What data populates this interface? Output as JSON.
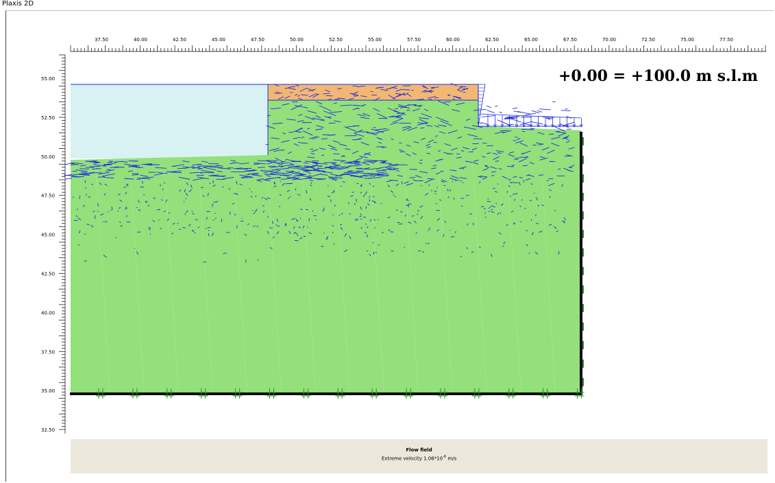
{
  "window": {
    "title": "Plaxis 2D"
  },
  "plot": {
    "x_labels": [
      "37.50",
      "40.00",
      "42.50",
      "45.00",
      "47.50",
      "50.00",
      "52.50",
      "55.00",
      "57.50",
      "60.00",
      "62.50",
      "65.00",
      "67.50",
      "70.00",
      "72.50",
      "75.00",
      "77.50"
    ],
    "y_labels": [
      "55.00",
      "52.50",
      "50.00",
      "47.50",
      "45.00",
      "42.50",
      "40.00",
      "37.50",
      "35.00",
      "32.50"
    ],
    "datum_text": "+0.00 = +100.0 m s.l.m",
    "colors": {
      "soil": "#94e07a",
      "water": "#d8f2f4",
      "fill_layer": "#f2b872",
      "arrows": "#1f2be0",
      "boundary": "#0a0a0a",
      "fixity": "#2e8b2e"
    }
  },
  "legend": {
    "title": "Flow field",
    "subtitle_prefix": "Extreme velocity 1.06*10",
    "subtitle_exp": "-6",
    "subtitle_unit": " m/s"
  }
}
